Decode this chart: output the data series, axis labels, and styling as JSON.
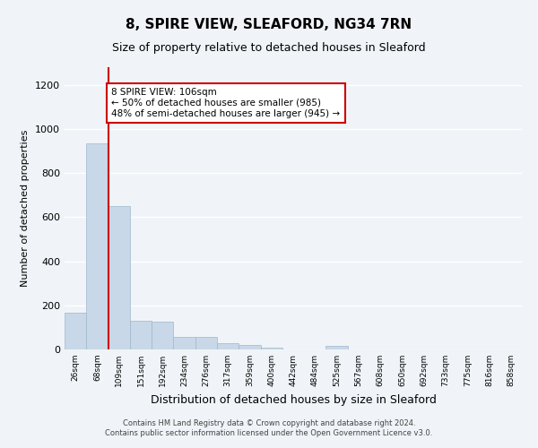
{
  "title": "8, SPIRE VIEW, SLEAFORD, NG34 7RN",
  "subtitle": "Size of property relative to detached houses in Sleaford",
  "xlabel": "Distribution of detached houses by size in Sleaford",
  "ylabel": "Number of detached properties",
  "bin_labels": [
    "26sqm",
    "68sqm",
    "109sqm",
    "151sqm",
    "192sqm",
    "234sqm",
    "276sqm",
    "317sqm",
    "359sqm",
    "400sqm",
    "442sqm",
    "484sqm",
    "525sqm",
    "567sqm",
    "608sqm",
    "650sqm",
    "692sqm",
    "733sqm",
    "775sqm",
    "816sqm",
    "858sqm"
  ],
  "bar_values": [
    165,
    935,
    650,
    130,
    128,
    58,
    55,
    30,
    20,
    10,
    0,
    0,
    15,
    0,
    0,
    0,
    0,
    0,
    0,
    0,
    0
  ],
  "bar_color": "#c8d8e8",
  "bar_edge_color": "#a0b8cc",
  "red_line_color": "#cc0000",
  "annotation_text": "8 SPIRE VIEW: 106sqm\n← 50% of detached houses are smaller (985)\n48% of semi-detached houses are larger (945) →",
  "annotation_box_color": "white",
  "annotation_box_edge": "#cc0000",
  "ylim": [
    0,
    1280
  ],
  "yticks": [
    0,
    200,
    400,
    600,
    800,
    1000,
    1200
  ],
  "footer_line1": "Contains HM Land Registry data © Crown copyright and database right 2024.",
  "footer_line2": "Contains public sector information licensed under the Open Government Licence v3.0.",
  "bg_color": "#f0f4f8",
  "plot_bg_color": "#f0f4f8",
  "title_fontsize": 11,
  "subtitle_fontsize": 9,
  "xlabel_fontsize": 9,
  "ylabel_fontsize": 8
}
